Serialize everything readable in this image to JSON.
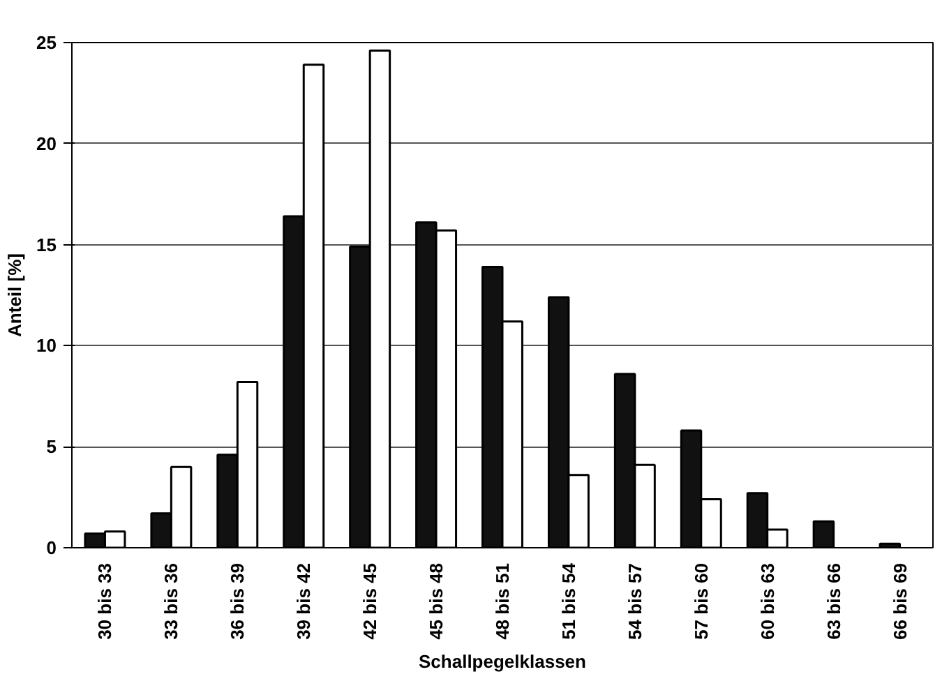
{
  "chart_data": {
    "type": "bar",
    "xlabel": "Schallpegelklassen",
    "ylabel": "Anteil [%]",
    "categories": [
      "30 bis 33",
      "33 bis 36",
      "36 bis 39",
      "39 bis 42",
      "42 bis 45",
      "45 bis 48",
      "48 bis 51",
      "51 bis 54",
      "54 bis 57",
      "57 bis 60",
      "60 bis 63",
      "63 bis 66",
      "66 bis 69"
    ],
    "series": [
      {
        "color": "#111111",
        "values": [
          0.7,
          1.7,
          4.6,
          16.4,
          14.9,
          16.1,
          13.9,
          12.4,
          8.6,
          5.8,
          2.7,
          1.3,
          0.2
        ]
      },
      {
        "color": "#ffffff",
        "values": [
          0.8,
          4.0,
          8.2,
          23.9,
          24.6,
          15.7,
          11.2,
          3.6,
          4.1,
          2.4,
          0.9,
          null,
          null
        ]
      }
    ],
    "ylim": [
      0,
      25
    ],
    "yticks": [
      0,
      5,
      10,
      15,
      20,
      25
    ],
    "grid": "y"
  }
}
